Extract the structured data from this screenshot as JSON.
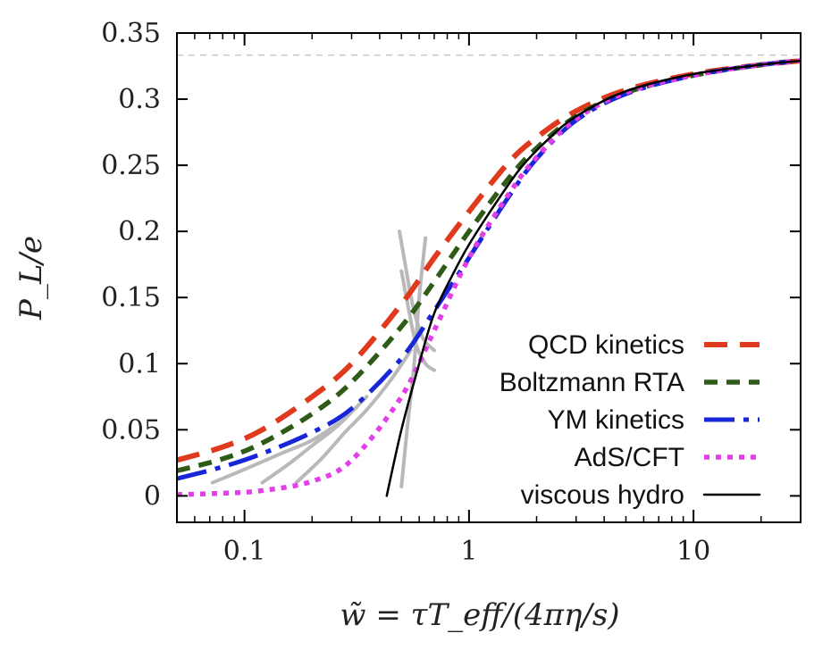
{
  "chart_data": {
    "type": "line",
    "xscale": "log",
    "xlim": [
      0.05,
      30
    ],
    "ylim": [
      -0.02,
      0.35
    ],
    "xlabel": "w̃ = τT_eff/(4πη/s)",
    "ylabel": "P_L/e",
    "x_ticks": [
      0.1,
      1,
      10
    ],
    "x_tick_labels": [
      "0.1",
      "1",
      "10"
    ],
    "y_ticks": [
      0,
      0.05,
      0.1,
      0.15,
      0.2,
      0.25,
      0.3,
      0.35
    ],
    "y_tick_labels": [
      "0",
      "0.05",
      "0.1",
      "0.15",
      "0.2",
      "0.25",
      "0.3",
      "0.35"
    ],
    "reference_line": {
      "y": 0.3333,
      "style": "dashed",
      "color": "#c8c8c8"
    },
    "legend_position": "right",
    "series": [
      {
        "name": "QCD kinetics",
        "color": "#e03a1e",
        "style": "long-dash",
        "x": [
          0.05,
          0.08,
          0.12,
          0.2,
          0.3,
          0.5,
          0.7,
          1.0,
          1.5,
          2.0,
          3.0,
          5.0,
          10,
          20,
          30
        ],
        "y": [
          0.027,
          0.037,
          0.05,
          0.075,
          0.1,
          0.145,
          0.18,
          0.215,
          0.252,
          0.271,
          0.291,
          0.307,
          0.319,
          0.326,
          0.329
        ]
      },
      {
        "name": "Boltzmann RTA",
        "color": "#2e5c17",
        "style": "dash",
        "x": [
          0.05,
          0.08,
          0.12,
          0.2,
          0.3,
          0.5,
          0.7,
          1.0,
          1.5,
          2.0,
          3.0,
          5.0,
          10,
          20,
          30
        ],
        "y": [
          0.019,
          0.028,
          0.04,
          0.062,
          0.086,
          0.128,
          0.162,
          0.2,
          0.24,
          0.263,
          0.287,
          0.305,
          0.318,
          0.326,
          0.329
        ]
      },
      {
        "name": "YM kinetics",
        "color": "#1726d9",
        "style": "long-dash-dot",
        "x": [
          0.05,
          0.08,
          0.12,
          0.2,
          0.3,
          0.5,
          0.7,
          1.0,
          1.5,
          2.0,
          3.0,
          5.0,
          10,
          20,
          30
        ],
        "y": [
          0.013,
          0.022,
          0.032,
          0.048,
          0.066,
          0.104,
          0.14,
          0.18,
          0.226,
          0.255,
          0.284,
          0.304,
          0.318,
          0.326,
          0.329
        ]
      },
      {
        "name": "AdS/CFT",
        "color": "#e23fe8",
        "style": "dotted",
        "x": [
          0.05,
          0.08,
          0.12,
          0.2,
          0.3,
          0.5,
          0.7,
          1.0,
          1.5,
          2.0,
          3.0,
          5.0,
          10,
          20,
          30
        ],
        "y": [
          0.001,
          0.002,
          0.004,
          0.011,
          0.027,
          0.075,
          0.125,
          0.18,
          0.228,
          0.256,
          0.285,
          0.305,
          0.318,
          0.326,
          0.329
        ]
      },
      {
        "name": "viscous hydro",
        "color": "#000000",
        "style": "solid",
        "x": [
          0.43,
          0.5,
          0.6,
          0.7,
          0.85,
          1.0,
          1.3,
          1.7,
          2.2,
          3.0,
          5.0,
          10,
          20,
          30
        ],
        "y": [
          0.0,
          0.05,
          0.1,
          0.138,
          0.168,
          0.19,
          0.22,
          0.248,
          0.268,
          0.287,
          0.306,
          0.319,
          0.326,
          0.329
        ]
      }
    ],
    "gray_curves": [
      {
        "x": [
          0.072,
          0.1,
          0.15,
          0.2,
          0.28
        ],
        "y": [
          0.01,
          0.02,
          0.033,
          0.042,
          0.058
        ]
      },
      {
        "x": [
          0.12,
          0.16,
          0.2,
          0.26,
          0.35
        ],
        "y": [
          0.01,
          0.025,
          0.038,
          0.053,
          0.075
        ]
      },
      {
        "x": [
          0.17,
          0.22,
          0.28,
          0.35,
          0.45,
          0.55
        ],
        "y": [
          0.01,
          0.028,
          0.048,
          0.065,
          0.088,
          0.11
        ]
      },
      {
        "x": [
          0.49,
          0.52,
          0.56,
          0.62,
          0.7
        ],
        "y": [
          0.2,
          0.175,
          0.145,
          0.12,
          0.11
        ]
      },
      {
        "x": [
          0.5,
          0.54,
          0.58,
          0.64,
          0.7
        ],
        "y": [
          0.17,
          0.14,
          0.115,
          0.1,
          0.095
        ]
      },
      {
        "x": [
          0.5,
          0.53,
          0.57,
          0.6,
          0.64
        ],
        "y": [
          0.007,
          0.05,
          0.1,
          0.15,
          0.195
        ]
      }
    ]
  }
}
